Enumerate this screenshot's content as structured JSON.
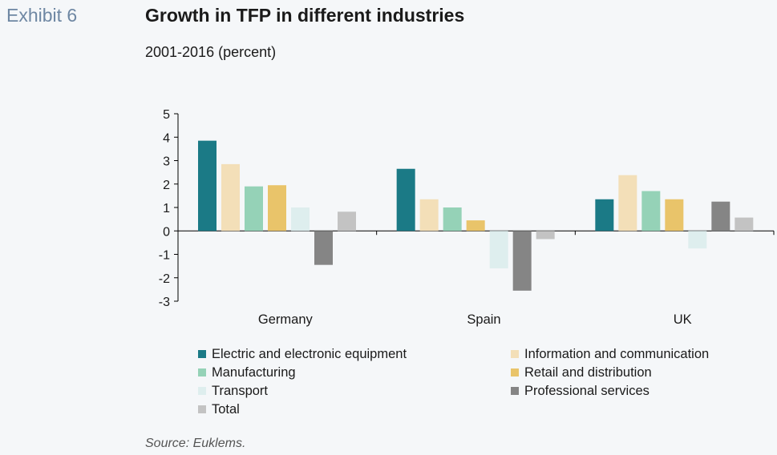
{
  "header": {
    "exhibit": "Exhibit 6",
    "title": "Growth in TFP in different industries",
    "subtitle": "2001-2016 (percent)"
  },
  "source": "Source: Euklems.",
  "chart_data": {
    "type": "bar",
    "categories": [
      "Germany",
      "Spain",
      "UK"
    ],
    "ylim": [
      -3,
      5
    ],
    "yticks": [
      5,
      4,
      3,
      2,
      1,
      0,
      -1,
      -2,
      -3
    ],
    "grid": false,
    "legend_position": "bottom",
    "series": [
      {
        "name": "Electric and electronic equipment",
        "color": "#1b7a86",
        "values": [
          3.85,
          2.65,
          1.35
        ]
      },
      {
        "name": "Information and communication",
        "color": "#f3dfb8",
        "values": [
          2.85,
          1.35,
          2.38
        ]
      },
      {
        "name": "Manufacturing",
        "color": "#95d2b7",
        "values": [
          1.9,
          1.0,
          1.7
        ]
      },
      {
        "name": "Retail and distribution",
        "color": "#e9c46a",
        "values": [
          1.95,
          0.45,
          1.35
        ]
      },
      {
        "name": "Transport",
        "color": "#deeeee",
        "values": [
          1.0,
          -1.6,
          -0.75
        ]
      },
      {
        "name": "Professional services",
        "color": "#858585",
        "values": [
          -1.45,
          -2.55,
          1.25
        ]
      },
      {
        "name": "Total",
        "color": "#c3c3c3",
        "values": [
          0.82,
          -0.35,
          0.57
        ]
      }
    ]
  }
}
